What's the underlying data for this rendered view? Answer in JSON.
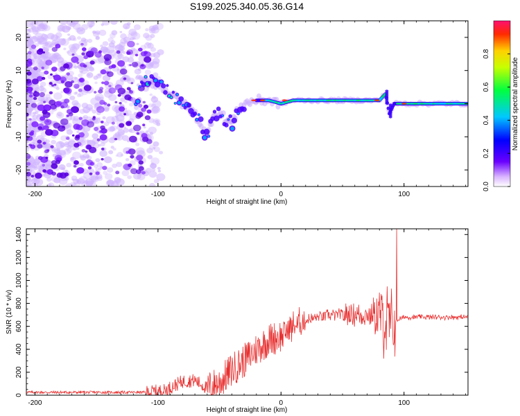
{
  "title": "S199.2025.340.05.36.G14",
  "chart_data": [
    {
      "type": "heatmap",
      "name": "spectrogram",
      "xlabel": "Height of straight line (km)",
      "ylabel": "Frequency (Hz)",
      "xlim": [
        -207,
        152
      ],
      "ylim": [
        -25,
        25
      ],
      "xticks": [
        "-200",
        "-100",
        "0",
        "100"
      ],
      "yticks": [
        "-20",
        "-10",
        "0",
        "10",
        "20"
      ],
      "colorbar": {
        "label": "Normalized spectral amplitude",
        "range": [
          0,
          1
        ],
        "ticks": [
          "0.0",
          "0.2",
          "0.4",
          "0.6",
          "0.8"
        ]
      },
      "ridge": {
        "description_points_km_hz": [
          [
            -115,
            7
          ],
          [
            -100,
            6
          ],
          [
            -90,
            3
          ],
          [
            -80,
            0
          ],
          [
            -70,
            -3
          ],
          [
            -60,
            -10
          ],
          [
            -55,
            -3
          ],
          [
            -50,
            -3
          ],
          [
            -40,
            -6
          ],
          [
            -35,
            -2
          ],
          [
            -30,
            0
          ],
          [
            -20,
            1
          ],
          [
            -10,
            1
          ],
          [
            0,
            0
          ],
          [
            10,
            1
          ],
          [
            50,
            1
          ],
          [
            80,
            1
          ],
          [
            85,
            3
          ],
          [
            88,
            -3
          ],
          [
            92,
            0
          ],
          [
            150,
            0
          ]
        ]
      }
    },
    {
      "type": "line",
      "name": "snr",
      "xlabel": "Height of straight line (km)",
      "ylabel": "SNR (10 * v/v)",
      "xlim": [
        -207,
        152
      ],
      "ylim": [
        0,
        1450
      ],
      "xticks": [
        "-200",
        "-100",
        "0",
        "100"
      ],
      "yticks": [
        "0",
        "200",
        "400",
        "600",
        "800",
        "1000",
        "1200",
        "1400"
      ],
      "color": "#e83030",
      "baseline_points": [
        [
          -207,
          25
        ],
        [
          -110,
          25
        ],
        [
          -95,
          40
        ],
        [
          -80,
          120
        ],
        [
          -70,
          130
        ],
        [
          -60,
          60
        ],
        [
          -50,
          110
        ],
        [
          -40,
          220
        ],
        [
          -30,
          300
        ],
        [
          -20,
          400
        ],
        [
          -10,
          480
        ],
        [
          0,
          520
        ],
        [
          10,
          600
        ],
        [
          20,
          650
        ],
        [
          30,
          680
        ],
        [
          40,
          700
        ],
        [
          50,
          700
        ],
        [
          60,
          700
        ],
        [
          70,
          700
        ],
        [
          80,
          680
        ],
        [
          90,
          580
        ],
        [
          93,
          650
        ],
        [
          100,
          680
        ],
        [
          152,
          680
        ]
      ],
      "peak_value": 1450
    }
  ]
}
